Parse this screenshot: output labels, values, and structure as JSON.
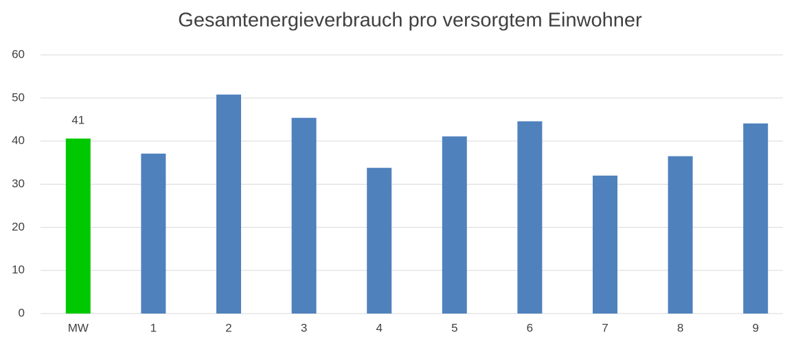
{
  "chart_data": {
    "type": "bar",
    "title": "Gesamtenergieverbrauch pro versorgtem Einwohner",
    "categories": [
      "MW",
      "1",
      "2",
      "3",
      "4",
      "5",
      "6",
      "7",
      "8",
      "9"
    ],
    "values": [
      40.6,
      37.1,
      50.8,
      45.4,
      33.8,
      41.1,
      44.6,
      32.0,
      36.5,
      44.1
    ],
    "value_labels": [
      "41",
      null,
      null,
      null,
      null,
      null,
      null,
      null,
      null,
      null
    ],
    "colors": [
      "#00c800",
      "#4f81bd",
      "#4f81bd",
      "#4f81bd",
      "#4f81bd",
      "#4f81bd",
      "#4f81bd",
      "#4f81bd",
      "#4f81bd",
      "#4f81bd"
    ],
    "ylim": [
      0,
      60
    ],
    "yticks": [
      0,
      10,
      20,
      30,
      40,
      50,
      60
    ],
    "grid": true
  }
}
